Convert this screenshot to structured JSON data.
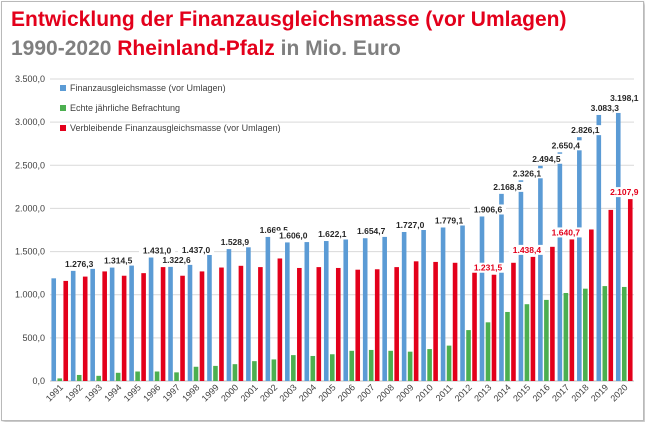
{
  "header": {
    "title": "Entwicklung der Finanzausgleichsmasse (vor Umlagen)",
    "subtitle_prefix": "1990-2020 ",
    "subtitle_highlight": "Rheinland-Pfalz",
    "subtitle_suffix": " in Mio. Euro"
  },
  "colors": {
    "title_red": "#e3001b",
    "subtitle_grey": "#7f7f7f",
    "series_blue": "#5b9bd5",
    "series_green": "#4caf50",
    "series_red": "#e3001b"
  },
  "chart_data": {
    "type": "bar",
    "categories": [
      "1991",
      "1992",
      "1993",
      "1994",
      "1995",
      "1996",
      "1997",
      "1998",
      "1999",
      "2000",
      "2001",
      "2002",
      "2003",
      "2004",
      "2005",
      "2006",
      "2007",
      "2008",
      "2009",
      "2010",
      "2011",
      "2012",
      "2013",
      "2014",
      "2015",
      "2016",
      "2017",
      "2018",
      "2019",
      "2020"
    ],
    "series": [
      {
        "name": "Finanzausgleichsmasse (vor Umlagen)",
        "color": "#5b9bd5",
        "values": [
          1190,
          1276.3,
          1330,
          1314.5,
          1360,
          1431.0,
          1322.6,
          1437.0,
          1490,
          1528.9,
          1550,
          1669.5,
          1606.0,
          1610,
          1622.1,
          1640,
          1654.7,
          1670,
          1727.0,
          1750,
          1779.1,
          1860,
          1906.6,
          2168.8,
          2326.1,
          2494.5,
          2650.4,
          2826.1,
          3083.3,
          3198.1
        ]
      },
      {
        "name": "Echte jährliche Befrachtung",
        "color": "#4caf50",
        "values": [
          30,
          70,
          60,
          95,
          110,
          110,
          100,
          165,
          175,
          195,
          230,
          250,
          300,
          290,
          310,
          350,
          360,
          350,
          340,
          370,
          410,
          590,
          680,
          800,
          890,
          940,
          1020,
          1070,
          1100,
          1090
        ]
      },
      {
        "name": "Verbleibende Finanzausgleichsmasse (vor Umlagen)",
        "color": "#e3001b",
        "values": [
          1160,
          1210,
          1270,
          1220,
          1250,
          1320,
          1220,
          1270,
          1315,
          1335,
          1320,
          1420,
          1310,
          1320,
          1310,
          1290,
          1295,
          1320,
          1387,
          1380,
          1370,
          1270,
          1231.5,
          1370,
          1438.4,
          1555,
          1640.7,
          1756,
          1983,
          2107.9
        ]
      }
    ],
    "labels_blue": [
      "",
      "1.276,3",
      "",
      "1.314,5",
      "",
      "1.431,0",
      "1.322,6",
      "1.437,0",
      "",
      "1.528,9",
      "",
      "1.669,5",
      "1.606,0",
      "",
      "1.622,1",
      "",
      "1.654,7",
      "",
      "1.727,0",
      "",
      "1.779,1",
      "",
      "1.906,6",
      "2.168,8",
      "2.326,1",
      "2.494,5",
      "2.650,4",
      "2.826,1",
      "3.083,3",
      "3.198,1"
    ],
    "labels_red": [
      "",
      "",
      "",
      "",
      "",
      "",
      "",
      "",
      "",
      "",
      "",
      "",
      "",
      "",
      "",
      "",
      "",
      "",
      "",
      "",
      "",
      "",
      "1.231,5",
      "",
      "1.438,4",
      "",
      "1.640,7",
      "",
      "",
      "2.107,9"
    ],
    "ylim": [
      0,
      3500
    ],
    "yticks": [
      0,
      500,
      1000,
      1500,
      2000,
      2500,
      3000,
      3500
    ],
    "ytick_labels": [
      "0,0",
      "500,0",
      "1.000,0",
      "1.500,0",
      "2.000,0",
      "2.500,0",
      "3.000,0",
      "3.500,0"
    ],
    "grid": true,
    "legend_position": "top-left"
  }
}
